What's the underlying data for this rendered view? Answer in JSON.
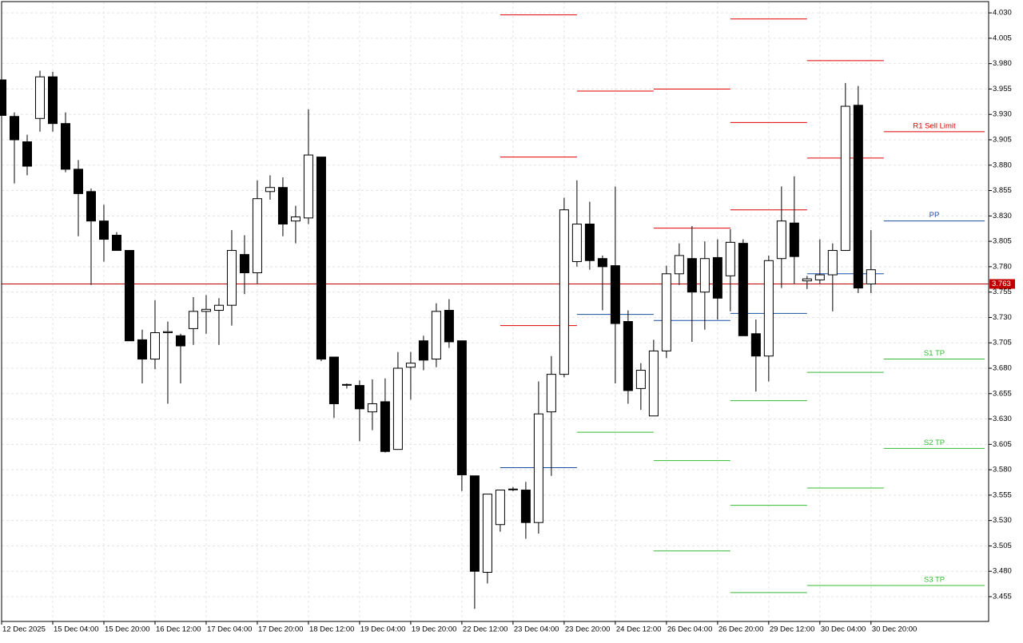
{
  "chart_data": {
    "type": "candlestick",
    "categories": [
      "12 Dec 2025",
      null,
      null,
      null,
      "15 Dec 04:00",
      null,
      null,
      null,
      "15 Dec 20:00",
      null,
      null,
      null,
      "16 Dec 12:00",
      null,
      null,
      null,
      "17 Dec 04:00",
      null,
      null,
      null,
      "17 Dec 20:00",
      null,
      null,
      null,
      "18 Dec 12:00",
      null,
      null,
      null,
      "19 Dec 04:00",
      null,
      null,
      null,
      "19 Dec 20:00",
      null,
      null,
      null,
      "22 Dec 12:00",
      null,
      null,
      null,
      "23 Dec 04:00",
      null,
      null,
      null,
      "23 Dec 20:00",
      null,
      null,
      null,
      "24 Dec 12:00",
      null,
      null,
      null,
      "26 Dec 04:00",
      null,
      null,
      null,
      "26 Dec 20:00",
      null,
      null,
      null,
      "29 Dec 12:00",
      null,
      null,
      null,
      "30 Dec 04:00",
      null,
      null,
      null,
      "30 Dec 20:00"
    ],
    "open": [
      3.964,
      3.928,
      3.903,
      3.926,
      3.967,
      3.921,
      3.876,
      3.854,
      3.825,
      3.811,
      3.796,
      3.708,
      3.689,
      3.715,
      3.712,
      3.719,
      3.736,
      3.737,
      3.742,
      3.792,
      3.774,
      3.854,
      3.858,
      3.825,
      3.828,
      3.888,
      3.691,
      3.664,
      3.663,
      3.637,
      3.647,
      3.6,
      3.681,
      3.707,
      3.689,
      3.737,
      3.707,
      3.574,
      3.479,
      3.526,
      3.561,
      3.56,
      3.528,
      3.637,
      3.674,
      3.785,
      3.822,
      3.788,
      3.781,
      3.726,
      3.66,
      3.633,
      3.697,
      3.773,
      3.788,
      3.755,
      3.789,
      3.771,
      3.803,
      3.714,
      3.692,
      3.788,
      3.823,
      3.766,
      3.767,
      3.772,
      3.796,
      3.939,
      3.763
    ],
    "high": [
      3.968,
      3.932,
      3.91,
      3.973,
      3.972,
      3.932,
      3.885,
      3.857,
      3.841,
      3.814,
      3.796,
      3.718,
      3.747,
      3.726,
      3.714,
      3.75,
      3.752,
      3.749,
      3.816,
      3.811,
      3.865,
      3.87,
      3.868,
      3.84,
      3.935,
      3.888,
      3.691,
      3.665,
      3.668,
      3.669,
      3.67,
      3.696,
      3.696,
      3.712,
      3.744,
      3.748,
      3.707,
      3.574,
      3.556,
      3.56,
      3.563,
      3.568,
      3.667,
      3.692,
      3.848,
      3.865,
      3.844,
      3.791,
      3.859,
      3.737,
      3.685,
      3.708,
      3.781,
      3.803,
      3.82,
      3.805,
      3.807,
      3.817,
      3.807,
      3.728,
      3.791,
      3.859,
      3.869,
      3.771,
      3.807,
      3.803,
      3.961,
      3.958,
      3.816
    ],
    "low": [
      3.925,
      3.862,
      3.87,
      3.913,
      3.913,
      3.873,
      3.81,
      3.762,
      3.785,
      3.796,
      3.707,
      3.665,
      3.679,
      3.645,
      3.665,
      3.703,
      3.714,
      3.703,
      3.722,
      3.753,
      3.763,
      3.846,
      3.81,
      3.803,
      3.822,
      3.687,
      3.631,
      3.66,
      3.608,
      3.619,
      3.597,
      3.6,
      3.649,
      3.678,
      3.681,
      3.7,
      3.559,
      3.443,
      3.468,
      3.519,
      3.559,
      3.512,
      3.517,
      3.574,
      3.671,
      3.78,
      3.777,
      3.737,
      3.665,
      3.645,
      3.639,
      3.633,
      3.69,
      3.762,
      3.706,
      3.718,
      3.728,
      3.736,
      3.712,
      3.657,
      3.667,
      3.759,
      3.763,
      3.758,
      3.763,
      3.736,
      3.796,
      3.754,
      3.754
    ],
    "close": [
      3.929,
      3.905,
      3.879,
      3.967,
      3.921,
      3.876,
      3.852,
      3.825,
      3.807,
      3.796,
      3.707,
      3.689,
      3.715,
      3.716,
      3.702,
      3.736,
      3.738,
      3.742,
      3.796,
      3.774,
      3.847,
      3.858,
      3.822,
      3.829,
      3.89,
      3.689,
      3.645,
      3.664,
      3.64,
      3.645,
      3.598,
      3.68,
      3.685,
      3.688,
      3.736,
      3.706,
      3.575,
      3.48,
      3.556,
      3.56,
      3.561,
      3.528,
      3.635,
      3.674,
      3.836,
      3.822,
      3.786,
      3.78,
      3.724,
      3.658,
      3.678,
      3.697,
      3.773,
      3.791,
      3.755,
      3.788,
      3.749,
      3.804,
      3.712,
      3.692,
      3.786,
      3.825,
      3.79,
      3.768,
      3.772,
      3.796,
      3.938,
      3.759,
      3.777
    ],
    "bull_color": "#ffffff",
    "bear_color": "#000000",
    "xlim": [
      0,
      77.2
    ],
    "ylim": [
      3.4306,
      4.0411
    ],
    "yticks": [
      {
        "value": 4.03,
        "label": "4.030"
      },
      4.005,
      {
        "value": 3.98,
        "label": "3.980"
      },
      3.955,
      {
        "value": 3.93,
        "label": "3.930"
      },
      3.905,
      {
        "value": 3.88,
        "label": "3.880"
      },
      3.855,
      {
        "value": 3.83,
        "label": "3.830"
      },
      3.805,
      {
        "value": 3.78,
        "label": "3.780"
      },
      3.755,
      {
        "value": 3.73,
        "label": "3.730"
      },
      3.705,
      {
        "value": 3.68,
        "label": "3.680"
      },
      3.655,
      {
        "value": 3.63,
        "label": "3.630"
      },
      3.605,
      {
        "value": 3.58,
        "label": "3.580"
      },
      3.555,
      {
        "value": 3.53,
        "label": "3.530"
      },
      3.505,
      {
        "value": 3.48,
        "label": "3.480"
      },
      3.455
    ],
    "grid": true,
    "current_price": 3.763,
    "current_color": "#c00000",
    "resistance_color": "#e00000",
    "pivot_color": "#1c4ea0",
    "support_color": "#33bb33",
    "levels": [
      {
        "x": [
          39,
          45
        ],
        "resistance": [
          4.028,
          3.888,
          3.722
        ],
        "pivot": 3.582,
        "support": []
      },
      {
        "x": [
          45,
          51
        ],
        "resistance": [
          3.953
        ],
        "pivot": 3.733,
        "support": [
          3.617
        ]
      },
      {
        "x": [
          51,
          57
        ],
        "resistance": [
          3.955,
          3.818
        ],
        "pivot": 3.727,
        "support": [
          3.589,
          3.5
        ]
      },
      {
        "x": [
          57,
          63
        ],
        "resistance": [
          4.024,
          3.922,
          3.836
        ],
        "pivot": 3.734,
        "support": [
          3.648,
          3.545,
          3.459
        ]
      },
      {
        "x": [
          63,
          69
        ],
        "resistance": [
          3.983,
          3.887
        ],
        "pivot": 3.773,
        "support": [
          3.676,
          3.562,
          3.466
        ]
      },
      {
        "x": [
          69,
          76.9
        ],
        "resistance": [
          3.913
        ],
        "pivot": 3.825,
        "support": [
          3.689,
          3.601,
          3.466
        ],
        "resistance_labels": [
          "R1 Sell Limit"
        ],
        "pivot_label": "PP",
        "support_labels": [
          "S1 TP",
          "S2 TP",
          "S3 TP"
        ]
      }
    ]
  }
}
